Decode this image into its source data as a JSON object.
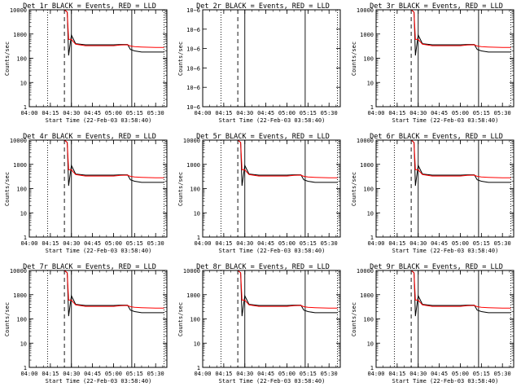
{
  "chart_data": [
    {
      "type": "line",
      "title": "Det 1r BLACK = Events, RED = LLD",
      "xlabel": "Start Time (22-Feb-03 03:58:40)",
      "ylabel": "Counts/sec",
      "ylim": [
        1,
        10000
      ],
      "yscale": "log",
      "yticks": [
        "10000",
        "1000",
        "100",
        "10",
        "1"
      ],
      "xticks": [
        "04:00",
        "04:15",
        "04:30",
        "04:45",
        "05:00",
        "05:15",
        "05:30"
      ],
      "series": [
        {
          "color": "#000000",
          "x": [
            "04:00",
            "04:15",
            "04:25",
            "04:27",
            "04:28",
            "04:30",
            "04:33",
            "04:40",
            "04:50",
            "05:00",
            "05:05",
            "05:10",
            "05:12",
            "05:15",
            "05:20",
            "05:30",
            "05:36"
          ],
          "values": [
            10000,
            10000,
            10000,
            8000,
            130,
            900,
            400,
            360,
            360,
            360,
            370,
            370,
            230,
            200,
            180,
            180,
            180
          ]
        },
        {
          "color": "#ff0000",
          "x": [
            "04:00",
            "04:15",
            "04:25",
            "04:27",
            "04:28",
            "04:30",
            "04:33",
            "04:40",
            "04:50",
            "05:00",
            "05:05",
            "05:10",
            "05:12",
            "05:15",
            "05:20",
            "05:30",
            "05:36"
          ],
          "values": [
            10000,
            10000,
            10000,
            8000,
            600,
            600,
            380,
            330,
            330,
            330,
            350,
            360,
            320,
            300,
            290,
            280,
            280
          ]
        }
      ]
    },
    {
      "type": "line",
      "title": "Det 2r BLACK = Events, RED = LLD",
      "xlabel": "Start Time (22-Feb-03 03:58:40)",
      "ylabel": "Counts/sec",
      "ylim": [
        1e-06,
        6e-06
      ],
      "yscale": "log",
      "yticks": [
        "10−6",
        "10−6",
        "10−6",
        "10−6",
        "10−6",
        "10−6"
      ],
      "xticks": [
        "04:00",
        "04:15",
        "04:30",
        "04:45",
        "05:00",
        "05:15",
        "05:30"
      ],
      "series": []
    },
    {
      "type": "line",
      "title": "Det 3r BLACK = Events, RED = LLD",
      "xlabel": "Start Time (22-Feb-03 03:58:40)",
      "ylabel": "Counts/sec",
      "ylim": [
        1,
        10000
      ],
      "yscale": "log",
      "yticks": [
        "10000",
        "1000",
        "100",
        "10",
        "1"
      ],
      "xticks": [
        "04:00",
        "04:15",
        "04:30",
        "04:45",
        "05:00",
        "05:15",
        "05:30"
      ],
      "series": [
        {
          "color": "#000000",
          "x": [
            "04:00",
            "04:15",
            "04:25",
            "04:27",
            "04:28",
            "04:30",
            "04:33",
            "04:40",
            "04:50",
            "05:00",
            "05:05",
            "05:10",
            "05:12",
            "05:15",
            "05:20",
            "05:30",
            "05:36"
          ],
          "values": [
            10000,
            10000,
            10000,
            8000,
            130,
            900,
            400,
            360,
            360,
            360,
            370,
            370,
            230,
            200,
            180,
            180,
            180
          ]
        },
        {
          "color": "#ff0000",
          "x": [
            "04:00",
            "04:15",
            "04:25",
            "04:27",
            "04:28",
            "04:30",
            "04:33",
            "04:40",
            "04:50",
            "05:00",
            "05:05",
            "05:10",
            "05:12",
            "05:15",
            "05:20",
            "05:30",
            "05:36"
          ],
          "values": [
            10000,
            10000,
            10000,
            8000,
            600,
            600,
            380,
            330,
            330,
            330,
            350,
            360,
            320,
            300,
            290,
            280,
            280
          ]
        }
      ]
    },
    {
      "type": "line",
      "title": "Det 4r BLACK = Events, RED = LLD",
      "xlabel": "Start Time (22-Feb-03 03:58:40)",
      "ylabel": "Counts/sec",
      "ylim": [
        1,
        10000
      ],
      "yscale": "log",
      "yticks": [
        "10000",
        "1000",
        "100",
        "10",
        "1"
      ],
      "xticks": [
        "04:00",
        "04:15",
        "04:30",
        "04:45",
        "05:00",
        "05:15",
        "05:30"
      ],
      "series": [
        {
          "color": "#000000",
          "x": [
            "04:00",
            "04:15",
            "04:25",
            "04:27",
            "04:28",
            "04:30",
            "04:33",
            "04:40",
            "04:50",
            "05:00",
            "05:05",
            "05:10",
            "05:12",
            "05:15",
            "05:20",
            "05:30",
            "05:36"
          ],
          "values": [
            10000,
            10000,
            10000,
            8000,
            130,
            900,
            400,
            360,
            360,
            360,
            370,
            370,
            230,
            200,
            180,
            180,
            180
          ]
        },
        {
          "color": "#ff0000",
          "x": [
            "04:00",
            "04:15",
            "04:25",
            "04:27",
            "04:28",
            "04:30",
            "04:33",
            "04:40",
            "04:50",
            "05:00",
            "05:05",
            "05:10",
            "05:12",
            "05:15",
            "05:20",
            "05:30",
            "05:36"
          ],
          "values": [
            10000,
            10000,
            10000,
            8000,
            600,
            600,
            380,
            330,
            330,
            330,
            350,
            360,
            320,
            300,
            290,
            280,
            280
          ]
        }
      ]
    },
    {
      "type": "line",
      "title": "Det 5r BLACK = Events, RED = LLD",
      "xlabel": "Start Time (22-Feb-03 03:58:40)",
      "ylabel": "Counts/sec",
      "ylim": [
        1,
        10000
      ],
      "yscale": "log",
      "yticks": [
        "10000",
        "1000",
        "100",
        "10",
        "1"
      ],
      "xticks": [
        "04:00",
        "04:15",
        "04:30",
        "04:45",
        "05:00",
        "05:15",
        "05:30"
      ],
      "series": [
        {
          "color": "#000000",
          "x": [
            "04:00",
            "04:15",
            "04:25",
            "04:27",
            "04:28",
            "04:30",
            "04:33",
            "04:40",
            "04:50",
            "05:00",
            "05:05",
            "05:10",
            "05:12",
            "05:15",
            "05:20",
            "05:30",
            "05:36"
          ],
          "values": [
            10000,
            10000,
            10000,
            8000,
            130,
            900,
            400,
            360,
            360,
            360,
            370,
            370,
            230,
            200,
            180,
            180,
            180
          ]
        },
        {
          "color": "#ff0000",
          "x": [
            "04:00",
            "04:15",
            "04:25",
            "04:27",
            "04:28",
            "04:30",
            "04:33",
            "04:40",
            "04:50",
            "05:00",
            "05:05",
            "05:10",
            "05:12",
            "05:15",
            "05:20",
            "05:30",
            "05:36"
          ],
          "values": [
            10000,
            10000,
            10000,
            8000,
            600,
            600,
            380,
            330,
            330,
            330,
            350,
            360,
            320,
            300,
            290,
            280,
            280
          ]
        }
      ]
    },
    {
      "type": "line",
      "title": "Det 6r BLACK = Events, RED = LLD",
      "xlabel": "Start Time (22-Feb-03 03:58:40)",
      "ylabel": "Counts/sec",
      "ylim": [
        1,
        10000
      ],
      "yscale": "log",
      "yticks": [
        "10000",
        "1000",
        "100",
        "10",
        "1"
      ],
      "xticks": [
        "04:00",
        "04:15",
        "04:30",
        "04:45",
        "05:00",
        "05:15",
        "05:30"
      ],
      "series": [
        {
          "color": "#000000",
          "x": [
            "04:00",
            "04:15",
            "04:25",
            "04:27",
            "04:28",
            "04:30",
            "04:33",
            "04:40",
            "04:50",
            "05:00",
            "05:05",
            "05:10",
            "05:12",
            "05:15",
            "05:20",
            "05:30",
            "05:36"
          ],
          "values": [
            10000,
            10000,
            10000,
            8000,
            130,
            900,
            400,
            360,
            360,
            360,
            370,
            370,
            230,
            200,
            180,
            180,
            180
          ]
        },
        {
          "color": "#ff0000",
          "x": [
            "04:00",
            "04:15",
            "04:25",
            "04:27",
            "04:28",
            "04:30",
            "04:33",
            "04:40",
            "04:50",
            "05:00",
            "05:05",
            "05:10",
            "05:12",
            "05:15",
            "05:20",
            "05:30",
            "05:36"
          ],
          "values": [
            10000,
            10000,
            10000,
            8000,
            600,
            600,
            380,
            330,
            330,
            330,
            350,
            360,
            320,
            300,
            290,
            280,
            280
          ]
        }
      ]
    },
    {
      "type": "line",
      "title": "Det 7r BLACK = Events, RED = LLD",
      "xlabel": "Start Time (22-Feb-03 03:58:40)",
      "ylabel": "Counts/sec",
      "ylim": [
        1,
        10000
      ],
      "yscale": "log",
      "yticks": [
        "10000",
        "1000",
        "100",
        "10",
        "1"
      ],
      "xticks": [
        "04:00",
        "04:15",
        "04:30",
        "04:45",
        "05:00",
        "05:15",
        "05:30"
      ],
      "series": [
        {
          "color": "#000000",
          "x": [
            "04:00",
            "04:15",
            "04:25",
            "04:27",
            "04:28",
            "04:30",
            "04:33",
            "04:40",
            "04:50",
            "05:00",
            "05:05",
            "05:10",
            "05:12",
            "05:15",
            "05:20",
            "05:30",
            "05:36"
          ],
          "values": [
            10000,
            10000,
            10000,
            8000,
            130,
            900,
            400,
            360,
            360,
            360,
            370,
            370,
            230,
            200,
            180,
            180,
            180
          ]
        },
        {
          "color": "#ff0000",
          "x": [
            "04:00",
            "04:15",
            "04:25",
            "04:27",
            "04:28",
            "04:30",
            "04:33",
            "04:40",
            "04:50",
            "05:00",
            "05:05",
            "05:10",
            "05:12",
            "05:15",
            "05:20",
            "05:30",
            "05:36"
          ],
          "values": [
            10000,
            10000,
            10000,
            8000,
            600,
            600,
            380,
            330,
            330,
            330,
            350,
            360,
            320,
            300,
            290,
            280,
            280
          ]
        }
      ]
    },
    {
      "type": "line",
      "title": "Det 8r BLACK = Events, RED = LLD",
      "xlabel": "Start Time (22-Feb-03 03:58:40)",
      "ylabel": "Counts/sec",
      "ylim": [
        1,
        10000
      ],
      "yscale": "log",
      "yticks": [
        "10000",
        "1000",
        "100",
        "10",
        "1"
      ],
      "xticks": [
        "04:00",
        "04:15",
        "04:30",
        "04:45",
        "05:00",
        "05:15",
        "05:30"
      ],
      "series": [
        {
          "color": "#000000",
          "x": [
            "04:00",
            "04:15",
            "04:25",
            "04:27",
            "04:28",
            "04:30",
            "04:33",
            "04:40",
            "04:50",
            "05:00",
            "05:05",
            "05:10",
            "05:12",
            "05:15",
            "05:20",
            "05:30",
            "05:36"
          ],
          "values": [
            10000,
            10000,
            10000,
            8000,
            130,
            900,
            400,
            360,
            360,
            360,
            370,
            370,
            230,
            200,
            180,
            180,
            180
          ]
        },
        {
          "color": "#ff0000",
          "x": [
            "04:00",
            "04:15",
            "04:25",
            "04:27",
            "04:28",
            "04:30",
            "04:33",
            "04:40",
            "04:50",
            "05:00",
            "05:05",
            "05:10",
            "05:12",
            "05:15",
            "05:20",
            "05:30",
            "05:36"
          ],
          "values": [
            10000,
            10000,
            10000,
            8000,
            600,
            600,
            380,
            330,
            330,
            330,
            350,
            360,
            320,
            300,
            290,
            280,
            280
          ]
        }
      ]
    },
    {
      "type": "line",
      "title": "Det 9r BLACK = Events, RED = LLD",
      "xlabel": "Start Time (22-Feb-03 03:58:40)",
      "ylabel": "Counts/sec",
      "ylim": [
        1,
        10000
      ],
      "yscale": "log",
      "yticks": [
        "10000",
        "1000",
        "100",
        "10",
        "1"
      ],
      "xticks": [
        "04:00",
        "04:15",
        "04:30",
        "04:45",
        "05:00",
        "05:15",
        "05:30"
      ],
      "series": [
        {
          "color": "#000000",
          "x": [
            "04:00",
            "04:15",
            "04:25",
            "04:27",
            "04:28",
            "04:30",
            "04:33",
            "04:40",
            "04:50",
            "05:00",
            "05:05",
            "05:10",
            "05:12",
            "05:15",
            "05:20",
            "05:30",
            "05:36"
          ],
          "values": [
            10000,
            10000,
            10000,
            8000,
            130,
            900,
            400,
            360,
            360,
            360,
            370,
            370,
            230,
            200,
            180,
            180,
            180
          ]
        },
        {
          "color": "#ff0000",
          "x": [
            "04:00",
            "04:15",
            "04:25",
            "04:27",
            "04:28",
            "04:30",
            "04:33",
            "04:40",
            "04:50",
            "05:00",
            "05:05",
            "05:10",
            "05:12",
            "05:15",
            "05:20",
            "05:30",
            "05:36"
          ],
          "values": [
            10000,
            10000,
            10000,
            8000,
            600,
            600,
            380,
            330,
            330,
            330,
            350,
            360,
            320,
            300,
            290,
            280,
            280
          ]
        }
      ]
    }
  ],
  "markers": {
    "dotted": [
      "04:13",
      "05:36"
    ],
    "dashed": [
      "04:25"
    ],
    "solid": [
      "04:30",
      "05:13"
    ]
  }
}
